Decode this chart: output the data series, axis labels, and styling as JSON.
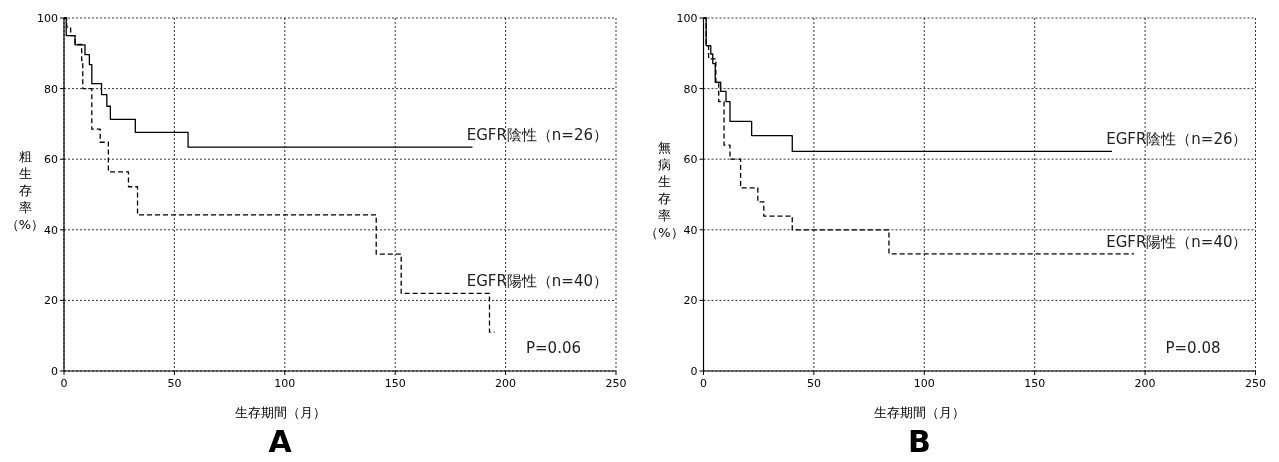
{
  "chart_data": [
    {
      "type": "step",
      "title": "A",
      "xlabel": "生存期間（月）",
      "ylabel": "粗生存率（%）",
      "xlim": [
        0,
        250
      ],
      "ylim": [
        0,
        100
      ],
      "xticks": [
        0,
        50,
        100,
        150,
        200,
        250
      ],
      "yticks": [
        0,
        20,
        40,
        60,
        80,
        100
      ],
      "grid": true,
      "series": [
        {
          "name": "EGFR陰性（n=26）",
          "color": "#000000",
          "line_style": "solid",
          "x": [
            0,
            1,
            5,
            9.5,
            11.5,
            12.6,
            17,
            19.4,
            21,
            32.3,
            56.2,
            185
          ],
          "values": [
            100,
            95,
            92.4,
            89.6,
            86.8,
            81.4,
            78.3,
            75,
            71.3,
            67.6,
            63.4,
            63.4
          ]
        },
        {
          "name": "EGFR陽性（n=40）",
          "color": "#000000",
          "line_style": "dashed",
          "x": [
            0,
            1.2,
            3,
            5,
            8,
            8.5,
            12.6,
            16.4,
            20.1,
            29.2,
            33.3,
            141.4,
            152.7,
            192.7,
            195
          ],
          "values": [
            100,
            97.5,
            95,
            92.5,
            88,
            80,
            68.5,
            64.8,
            56.4,
            52.2,
            44.2,
            33.1,
            22,
            11,
            11
          ]
        }
      ],
      "annotations": [
        "P=0.06"
      ]
    },
    {
      "type": "step",
      "title": "B",
      "xlabel": "生存期間（月）",
      "ylabel": "無病生存率（%）",
      "xlim": [
        0,
        250
      ],
      "ylim": [
        0,
        100
      ],
      "xticks": [
        0,
        50,
        100,
        150,
        200,
        250
      ],
      "yticks": [
        0,
        20,
        40,
        60,
        80,
        100
      ],
      "grid": true,
      "series": [
        {
          "name": "EGFR陰性（n=26）",
          "color": "#000000",
          "line_style": "solid",
          "x": [
            0,
            1.2,
            3.3,
            4.2,
            5.3,
            7.8,
            10.2,
            12,
            21.8,
            40.2,
            185
          ],
          "values": [
            100,
            92.2,
            89.8,
            87.1,
            81.8,
            79.2,
            76.3,
            70.7,
            66.7,
            62.2,
            62.2
          ]
        },
        {
          "name": "EGFR陽性（n=40）",
          "color": "#000000",
          "line_style": "dashed",
          "x": [
            0,
            1.2,
            2.3,
            5.6,
            6.9,
            9.3,
            12,
            16.8,
            24.6,
            27.3,
            40.2,
            84,
            195
          ],
          "values": [
            100,
            92,
            88.4,
            81.8,
            76.3,
            64,
            60,
            51.9,
            47.9,
            43.9,
            40,
            33.2,
            33.2
          ]
        }
      ],
      "annotations": [
        "P=0.08"
      ]
    }
  ]
}
